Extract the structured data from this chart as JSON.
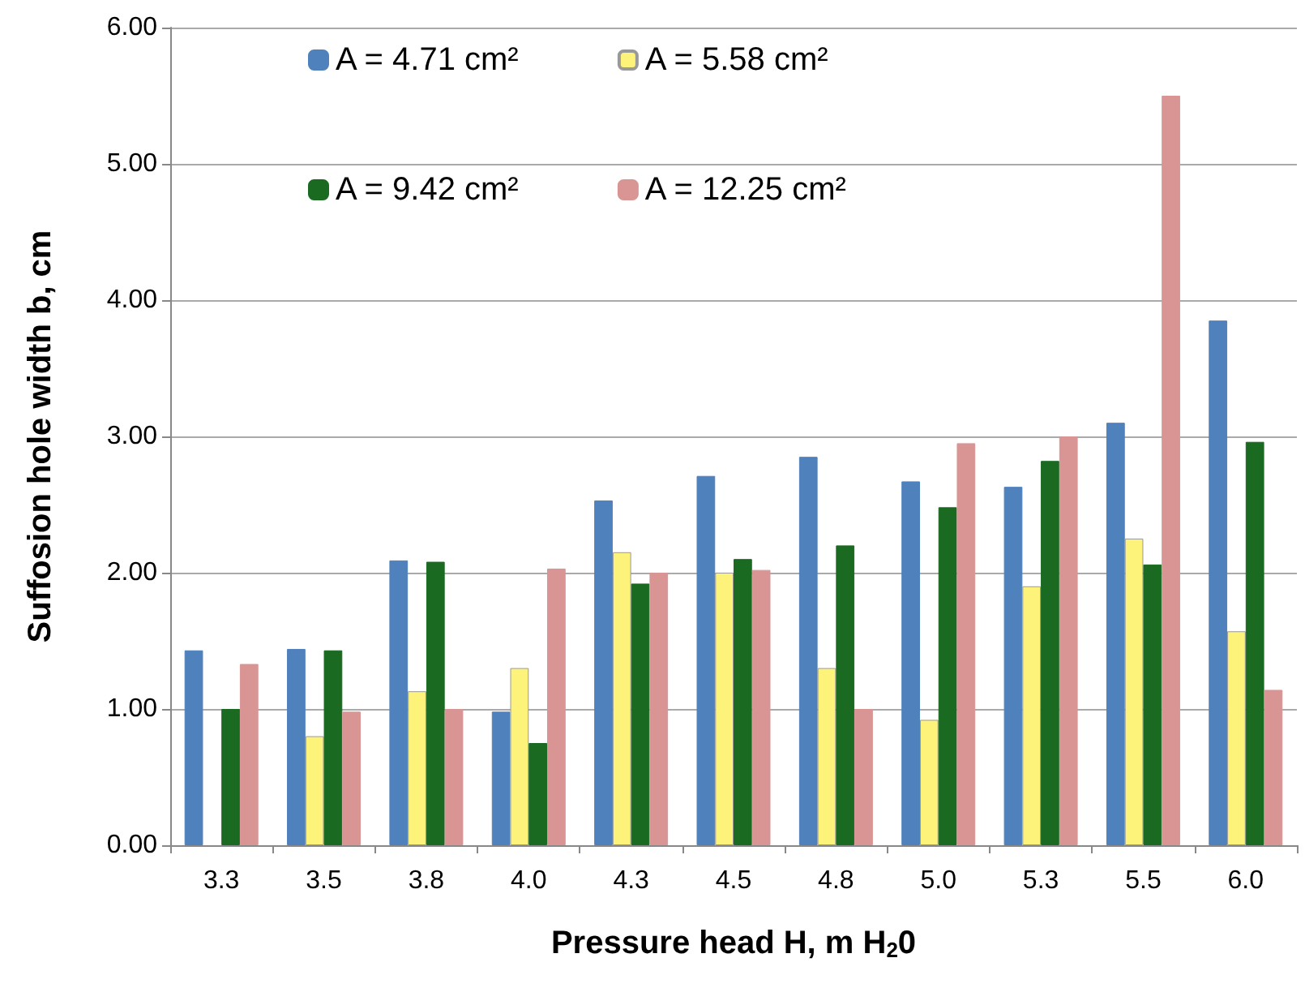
{
  "chart_data": {
    "type": "bar",
    "xlabel": "Pressure head H, m H$_{2}$0",
    "ylabel": "Suffosion hole width b, cm",
    "categories": [
      "3.3",
      "3.5",
      "3.8",
      "4.0",
      "4.3",
      "4.5",
      "4.8",
      "5.0",
      "5.3",
      "5.5",
      "6.0"
    ],
    "series": [
      {
        "name": "A = 4.71 cm²",
        "color": "#4f81bd",
        "values": [
          1.43,
          1.44,
          2.09,
          0.98,
          2.53,
          2.71,
          2.85,
          2.67,
          2.63,
          3.1,
          3.85
        ]
      },
      {
        "name": "A = 5.58 cm²",
        "color": "#fdf27a",
        "values": [
          null,
          0.8,
          1.13,
          1.3,
          2.15,
          2.0,
          1.3,
          0.92,
          1.9,
          2.25,
          1.57
        ]
      },
      {
        "name": "A = 9.42 cm²",
        "color": "#1a6a22",
        "values": [
          1.0,
          1.43,
          2.08,
          0.75,
          1.92,
          2.1,
          2.2,
          2.48,
          2.82,
          2.06,
          2.96
        ]
      },
      {
        "name": "A = 12.25 cm²",
        "color": "#d99594",
        "values": [
          1.33,
          0.98,
          1.0,
          2.03,
          2.0,
          2.02,
          1.0,
          2.95,
          3.0,
          5.5,
          1.14
        ]
      }
    ],
    "ylim": [
      0,
      6
    ],
    "yticks": [
      {
        "value": 0,
        "label": "0.00"
      },
      {
        "value": 1,
        "label": "1.00"
      },
      {
        "value": 2,
        "label": "2.00"
      },
      {
        "value": 3,
        "label": "3.00"
      },
      {
        "value": 4,
        "label": "4.00"
      },
      {
        "value": 5,
        "label": "5.00"
      },
      {
        "value": 6,
        "label": "6.00"
      }
    ],
    "grid": "y",
    "legend": "top"
  }
}
